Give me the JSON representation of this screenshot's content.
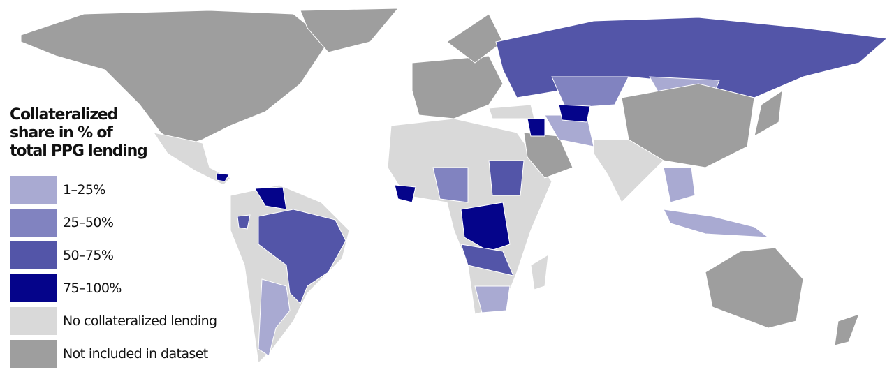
{
  "legend": {
    "title": "Collateralized share in % of total PPG lending",
    "items": [
      {
        "label": "1–25%",
        "color": "#a9aad2"
      },
      {
        "label": "25–50%",
        "color": "#8183c0"
      },
      {
        "label": "50–75%",
        "color": "#5355a8"
      },
      {
        "label": "75–100%",
        "color": "#05048a"
      },
      {
        "label": "No collateralized lending",
        "color": "#d9d9d9"
      },
      {
        "label": "Not included in dataset",
        "color": "#9e9e9e"
      }
    ]
  }
}
